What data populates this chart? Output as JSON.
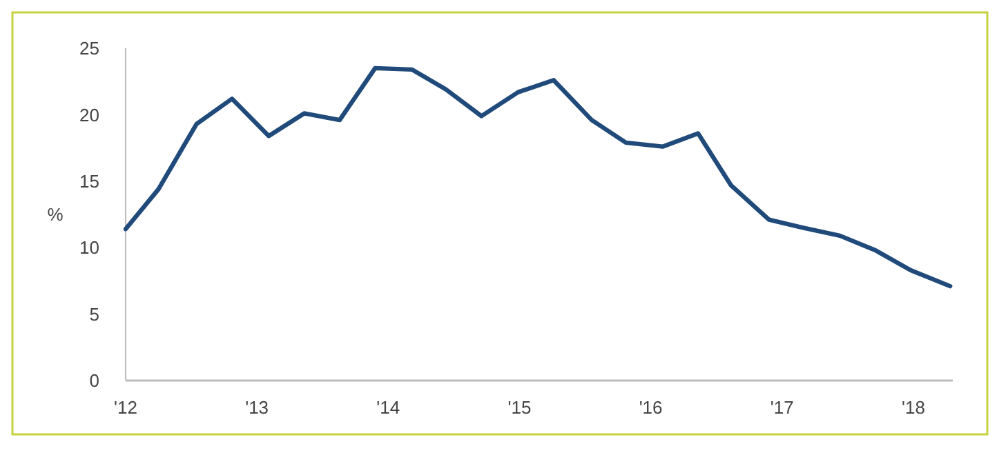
{
  "chart_data": {
    "type": "line",
    "ylabel": "%",
    "x": [
      2012.0,
      2012.25,
      2012.54,
      2012.81,
      2013.09,
      2013.36,
      2013.63,
      2013.9,
      2014.18,
      2014.44,
      2014.71,
      2014.99,
      2015.26,
      2015.55,
      2015.81,
      2016.09,
      2016.36,
      2016.61,
      2016.9,
      2017.16,
      2017.44,
      2017.71,
      2017.98,
      2018.28
    ],
    "series": [
      {
        "color": "#1f4a7a",
        "values": [
          11.4,
          14.4,
          19.3,
          21.2,
          18.4,
          20.1,
          19.6,
          23.5,
          23.4,
          21.9,
          19.9,
          21.7,
          22.6,
          19.6,
          17.9,
          17.6,
          18.6,
          14.7,
          12.1,
          11.5,
          10.9,
          9.8,
          8.3,
          7.1
        ]
      }
    ],
    "xlim": [
      2012,
      2018.3
    ],
    "xticks": [
      {
        "value": 2012,
        "label": "'12"
      },
      {
        "value": 2013,
        "label": "'13"
      },
      {
        "value": 2014,
        "label": "'14"
      },
      {
        "value": 2015,
        "label": "'15"
      },
      {
        "value": 2016,
        "label": "'16"
      },
      {
        "value": 2017,
        "label": "'17"
      },
      {
        "value": 2018,
        "label": "'18"
      }
    ],
    "ylim": [
      0,
      25
    ],
    "yticks": [
      0,
      5,
      10,
      15,
      20,
      25
    ],
    "grid": false,
    "marker": "none",
    "line_style": "solid"
  }
}
